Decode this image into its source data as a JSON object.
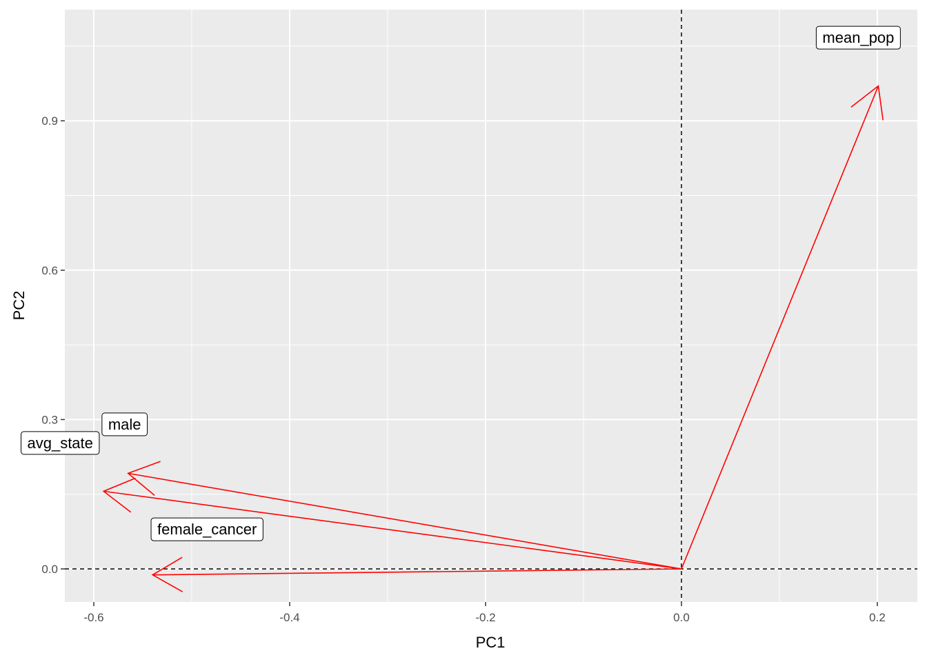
{
  "chart_data": {
    "type": "biplot",
    "title": "",
    "xlabel": "PC1",
    "ylabel": "PC2",
    "xlim": [
      -0.6,
      0.2
    ],
    "ylim": [
      0.0,
      0.9
    ],
    "x_ticks": [
      -0.6,
      -0.4,
      -0.2,
      0.0,
      0.2
    ],
    "x_tick_labels": [
      "-0.6",
      "-0.4",
      "-0.2",
      "0.0",
      "0.2"
    ],
    "y_ticks": [
      0.0,
      0.3,
      0.6,
      0.9
    ],
    "y_tick_labels": [
      "0.0",
      "0.3",
      "0.6",
      "0.9"
    ],
    "grid": true,
    "reference_lines": {
      "x": 0.0,
      "y": 0.0,
      "style": "dashed"
    },
    "arrow_color": "#ff0000",
    "vectors": [
      {
        "label": "mean_pop",
        "x": 0.201,
        "y": 0.97
      },
      {
        "label": "male",
        "x": -0.565,
        "y": 0.192
      },
      {
        "label": "avg_state",
        "x": -0.59,
        "y": 0.156
      },
      {
        "label": "female_cancer",
        "x": -0.54,
        "y": -0.012
      }
    ]
  }
}
